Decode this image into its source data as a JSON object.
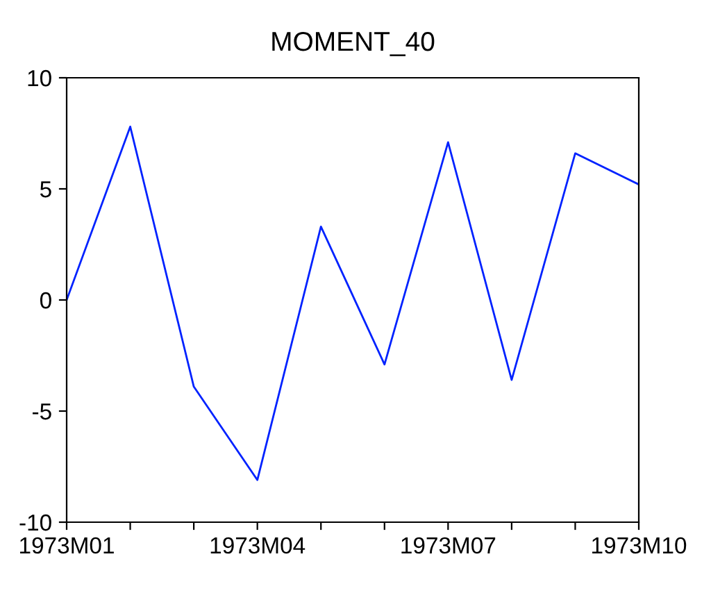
{
  "chart_data": {
    "type": "line",
    "title": "MOMENT_40",
    "categories": [
      "1973M01",
      null,
      null,
      "1973M04",
      null,
      null,
      "1973M07",
      null,
      null,
      "1973M10"
    ],
    "series": [
      {
        "color": "#0022ff",
        "values": [
          0,
          7.8,
          -3.9,
          -8.1,
          3.3,
          -2.9,
          7.1,
          -3.6,
          6.6,
          5.2
        ]
      }
    ],
    "ylim": [
      -10,
      10
    ],
    "yticks": [
      -10,
      -5,
      0,
      5,
      10
    ],
    "grid": false,
    "legend": false
  }
}
